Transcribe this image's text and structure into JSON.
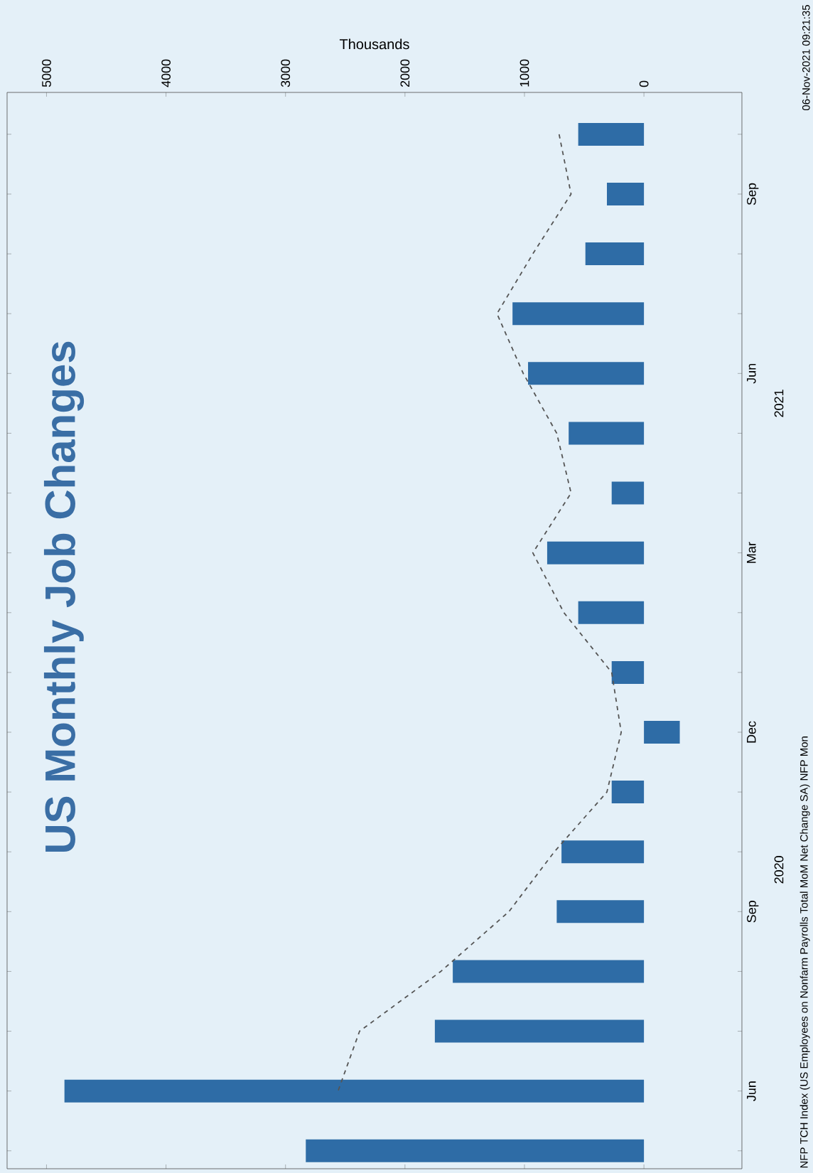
{
  "chart_data": {
    "type": "bar",
    "orientation": "horizontal",
    "title": "US Monthly Job Changes",
    "xlabel": "Thousands",
    "categories": [
      null,
      "Sep",
      null,
      null,
      "Jun",
      null,
      null,
      "Mar",
      null,
      null,
      "Dec",
      null,
      null,
      "Sep",
      null,
      null,
      "Jun",
      null
    ],
    "series": [
      {
        "color": "#2e6ca6",
        "values": [
          550,
          310,
          490,
          1100,
          970,
          630,
          270,
          810,
          550,
          270,
          -300,
          270,
          690,
          730,
          1600,
          1750,
          4850,
          2830
        ]
      },
      {
        "type": "line",
        "color": "#555555",
        "line_style": "dashed",
        "marker": "none",
        "values": [
          710,
          610,
          930,
          1230,
          1010,
          730,
          610,
          930,
          670,
          270,
          190,
          310,
          750,
          1130,
          1700,
          2380,
          2560,
          null
        ]
      }
    ],
    "xlim": [
      5330,
      -820
    ],
    "xticks": [
      0,
      1000,
      2000,
      3000,
      4000,
      5000
    ],
    "annotations": [
      "2020",
      "2021",
      "NFP TCH Index (US Employees on Nonfarm Payrolls Total MoM Net Change SA) NFP Mon",
      "06-Nov-2021 09:21:35"
    ]
  }
}
